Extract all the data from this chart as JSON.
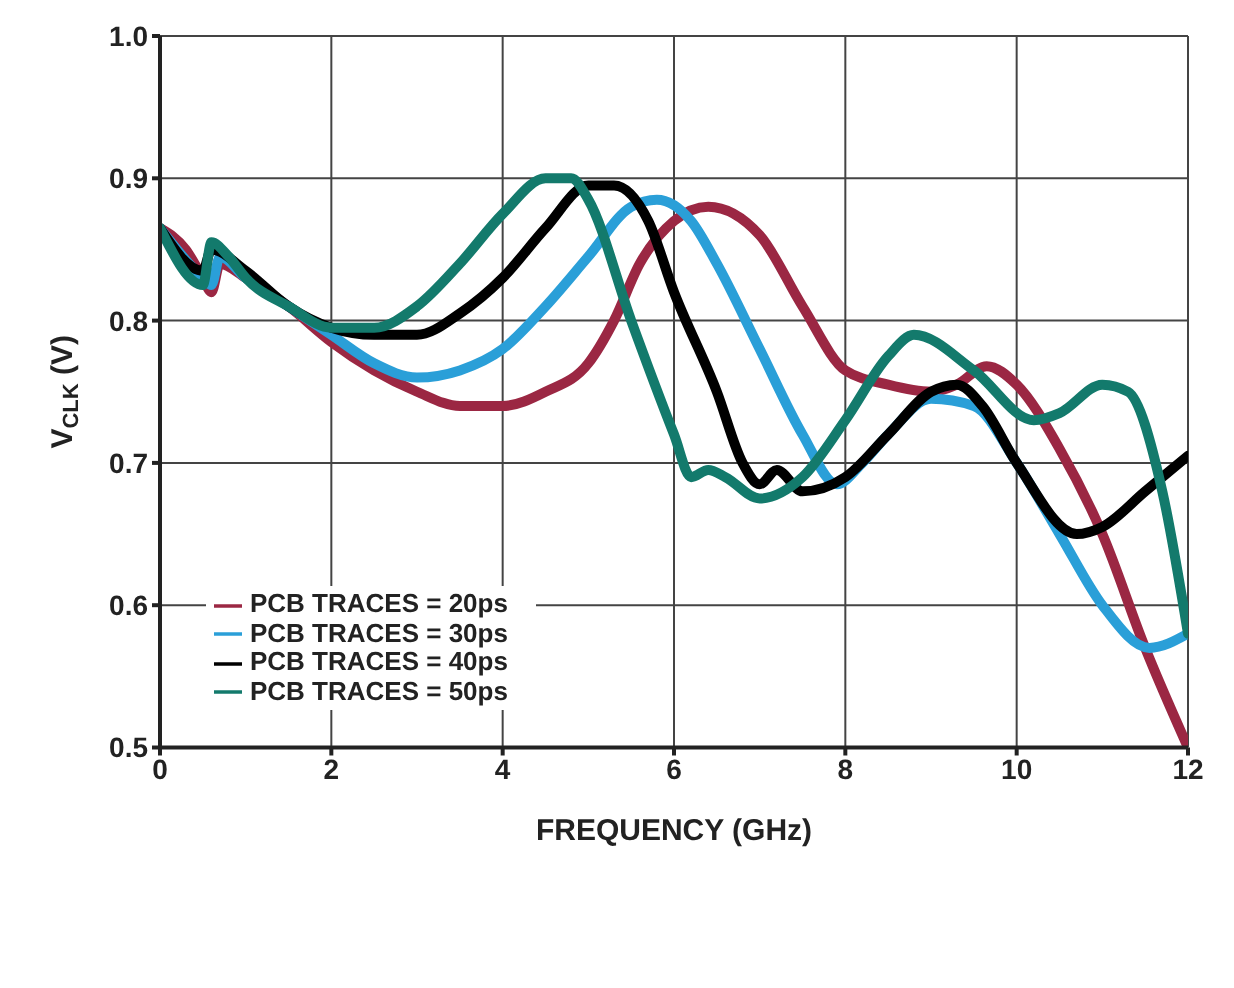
{
  "chart_data": {
    "type": "line",
    "xlabel": "FREQUENCY (GHz)",
    "ylabel": "V$_{CLK}$ (V)",
    "xlim": [
      0,
      12
    ],
    "xticks": [
      0,
      2,
      4,
      6,
      8,
      10,
      12
    ],
    "ylim": [
      0.5,
      1.0
    ],
    "yticks": [
      0.5,
      0.6,
      0.7,
      0.8,
      0.9,
      {
        "value": 1,
        "label": "1.0"
      }
    ],
    "grid": true,
    "legend": "bottom left",
    "marker": "none",
    "line_style": "solid",
    "series": [
      {
        "name": "PCB TRACES = 20ps",
        "color": "#9b2743",
        "x": [
          0,
          0.3,
          0.5,
          0.6,
          0.7,
          1,
          1.5,
          2,
          2.5,
          3,
          3.5,
          4,
          4.5,
          5,
          5.3,
          5.6,
          6,
          6.4,
          7,
          7.5,
          8,
          8.5,
          9,
          9.3,
          9.65,
          10,
          10.5,
          11,
          11.5,
          12
        ],
        "values": [
          0.865,
          0.85,
          0.83,
          0.82,
          0.84,
          0.83,
          0.81,
          0.785,
          0.765,
          0.75,
          0.74,
          0.74,
          0.75,
          0.77,
          0.8,
          0.84,
          0.87,
          0.88,
          0.86,
          0.81,
          0.765,
          0.755,
          0.75,
          0.755,
          0.768,
          0.755,
          0.71,
          0.65,
          0.57,
          0.5
        ]
      },
      {
        "name": "PCB TRACES = 30ps",
        "color": "#2a9fd8",
        "x": [
          0,
          0.5,
          0.6,
          0.7,
          1,
          1.5,
          2,
          2.5,
          3,
          3.5,
          4,
          4.5,
          5,
          5.5,
          5.8,
          6.2,
          6.5,
          7,
          7.5,
          7.9,
          8.2,
          8.5,
          9,
          9.5,
          10,
          10.5,
          11,
          11.55,
          12
        ],
        "values": [
          0.865,
          0.83,
          0.825,
          0.845,
          0.83,
          0.81,
          0.79,
          0.77,
          0.76,
          0.765,
          0.78,
          0.81,
          0.845,
          0.88,
          0.885,
          0.87,
          0.84,
          0.78,
          0.72,
          0.685,
          0.7,
          0.72,
          0.745,
          0.74,
          0.7,
          0.65,
          0.6,
          0.57,
          0.58
        ]
      },
      {
        "name": "PCB TRACES = 40ps",
        "color": "#000000",
        "x": [
          0,
          0.5,
          0.6,
          1,
          1.5,
          2,
          2.5,
          3,
          3.5,
          4,
          4.5,
          5,
          5.3,
          5.7,
          6,
          6.5,
          6.8,
          7,
          7.2,
          7.5,
          8,
          8.5,
          9,
          9.3,
          9.6,
          10,
          10.7,
          11,
          11.5,
          12
        ],
        "values": [
          0.865,
          0.835,
          0.85,
          0.835,
          0.81,
          0.795,
          0.79,
          0.79,
          0.805,
          0.83,
          0.865,
          0.895,
          0.895,
          0.87,
          0.82,
          0.75,
          0.7,
          0.685,
          0.695,
          0.68,
          0.69,
          0.72,
          0.75,
          0.755,
          0.74,
          0.7,
          0.65,
          0.655,
          0.68,
          0.705
        ]
      },
      {
        "name": "PCB TRACES = 50ps",
        "color": "#137a6c",
        "x": [
          0,
          0.5,
          0.6,
          0.8,
          1,
          1.5,
          2,
          2.5,
          3,
          3.5,
          4,
          4.5,
          4.8,
          5,
          5.5,
          6,
          6.2,
          6.4,
          6.6,
          7,
          7.5,
          8,
          8.5,
          8.8,
          9.5,
          10.2,
          10.5,
          11,
          11.3,
          11.7,
          12
        ],
        "values": [
          0.865,
          0.825,
          0.855,
          0.845,
          0.83,
          0.81,
          0.795,
          0.795,
          0.81,
          0.84,
          0.875,
          0.9,
          0.9,
          0.885,
          0.8,
          0.72,
          0.69,
          0.695,
          0.69,
          0.675,
          0.69,
          0.73,
          0.775,
          0.79,
          0.765,
          0.73,
          0.735,
          0.755,
          0.75,
          0.68,
          0.58
        ]
      }
    ]
  }
}
